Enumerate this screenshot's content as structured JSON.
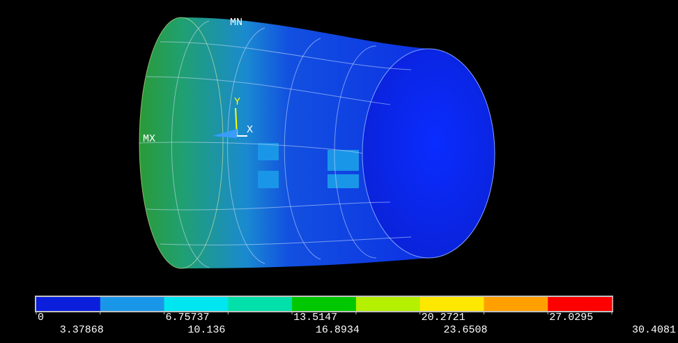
{
  "plot": {
    "labels": {
      "mn": "MN",
      "mx": "MX",
      "axis_x": "X",
      "axis_y": "Y"
    }
  },
  "legend": {
    "colors": [
      "#0a1edc",
      "#1a96e8",
      "#00e6f0",
      "#00e0a8",
      "#00c800",
      "#b4f000",
      "#ffe800",
      "#ffa000",
      "#ff0000"
    ],
    "labels": [
      "0",
      "3.37868",
      "6.75737",
      "10.136",
      "13.5147",
      "16.8934",
      "20.2721",
      "23.6508",
      "27.0295",
      "30.4081"
    ]
  }
}
